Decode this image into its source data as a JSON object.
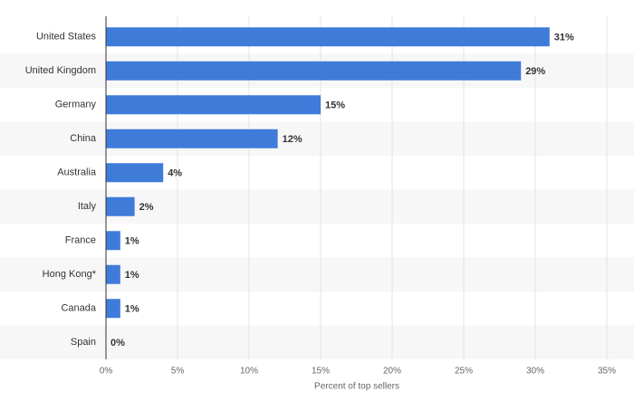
{
  "chart_data": {
    "type": "bar",
    "orientation": "horizontal",
    "categories": [
      "United States",
      "United Kingdom",
      "Germany",
      "China",
      "Australia",
      "Italy",
      "France",
      "Hong Kong*",
      "Canada",
      "Spain"
    ],
    "values": [
      31,
      29,
      15,
      12,
      4,
      2,
      1,
      1,
      1,
      0
    ],
    "value_labels": [
      "31%",
      "29%",
      "15%",
      "12%",
      "4%",
      "2%",
      "1%",
      "1%",
      "1%",
      "0%"
    ],
    "color": "#3f7bd9",
    "xlabel": "Percent of top sellers",
    "xlim": [
      0,
      35
    ],
    "xticks": [
      {
        "value": 0,
        "label": "0%"
      },
      {
        "value": 5,
        "label": "5%"
      },
      {
        "value": 10,
        "label": "10%"
      },
      {
        "value": 15,
        "label": "15%"
      },
      {
        "value": 20,
        "label": "20%"
      },
      {
        "value": 25,
        "label": "25%"
      },
      {
        "value": 30,
        "label": "30%"
      },
      {
        "value": 35,
        "label": "35%"
      }
    ],
    "grid": true
  }
}
